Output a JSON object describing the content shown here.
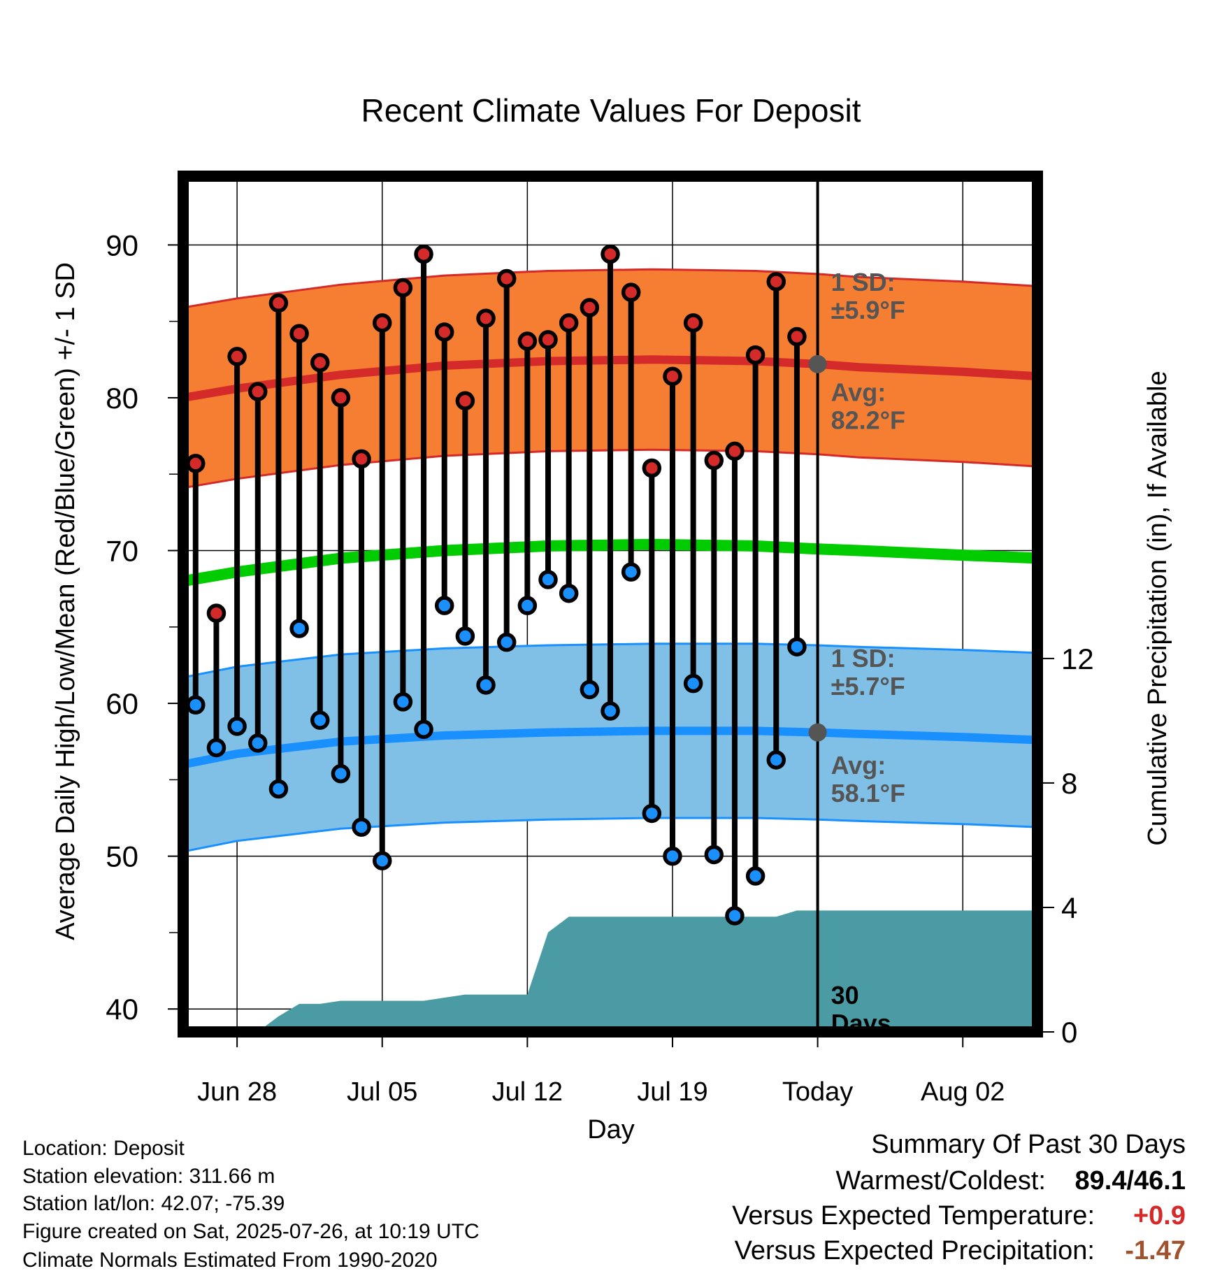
{
  "chart_data": {
    "type": "line",
    "title": "Recent Climate Values For Deposit",
    "xlabel": "Day",
    "ylabel_left": "Average Daily High/Low/Mean (Red/Blue/Green) +/- 1 SD",
    "ylabel_right": "Cumulative Precipitation (in), If Available",
    "x_ticks": [
      "Jun 28",
      "Jul 05",
      "Jul 12",
      "Jul 19",
      "Today",
      "Aug 02"
    ],
    "x_tick_days": [
      0,
      7,
      14,
      21,
      28,
      35
    ],
    "x_range_days": [
      -2.6,
      38.6
    ],
    "y_left_ticks": [
      40,
      50,
      60,
      70,
      80,
      90
    ],
    "y_left_range": [
      38.5,
      94.5
    ],
    "y_right_ticks": [
      0,
      4,
      8,
      12
    ],
    "y_right_range": [
      0,
      27.5
    ],
    "days": [
      -2,
      -1,
      0,
      1,
      2,
      3,
      4,
      5,
      6,
      7,
      8,
      9,
      10,
      11,
      12,
      13,
      14,
      15,
      16,
      17,
      18,
      19,
      20,
      21,
      22,
      23,
      24,
      25,
      26,
      27
    ],
    "highs": [
      75.7,
      65.9,
      82.7,
      80.4,
      86.2,
      84.2,
      82.3,
      80.0,
      76.0,
      84.9,
      87.2,
      89.4,
      84.3,
      79.8,
      85.2,
      87.8,
      83.7,
      83.8,
      84.9,
      85.9,
      89.4,
      86.9,
      75.4,
      81.4,
      84.9,
      75.9,
      76.5,
      82.8,
      87.6,
      84.0
    ],
    "lows": [
      59.9,
      57.1,
      58.5,
      57.4,
      54.4,
      64.9,
      58.9,
      55.4,
      51.9,
      49.7,
      60.1,
      58.3,
      66.4,
      64.4,
      61.2,
      64.0,
      66.4,
      68.1,
      67.2,
      60.9,
      59.5,
      68.6,
      52.8,
      50.0,
      61.3,
      50.1,
      46.1,
      48.7,
      56.3,
      63.7
    ],
    "normal_days": [
      -2.6,
      0,
      5,
      10,
      15,
      20,
      25,
      28,
      30,
      35,
      38.6
    ],
    "normal_high": [
      80.0,
      80.6,
      81.5,
      82.1,
      82.4,
      82.5,
      82.4,
      82.2,
      82.0,
      81.7,
      81.4
    ],
    "normal_low": [
      56.0,
      56.7,
      57.5,
      57.9,
      58.1,
      58.2,
      58.2,
      58.1,
      58.0,
      57.8,
      57.6
    ],
    "normal_mean": [
      68.0,
      68.6,
      69.5,
      70.0,
      70.3,
      70.4,
      70.3,
      70.1,
      70.0,
      69.7,
      69.5
    ],
    "high_sd": 5.9,
    "low_sd": 5.7,
    "precip_days": [
      -2.6,
      1,
      2,
      3,
      4,
      5,
      6,
      7,
      8,
      9,
      10,
      11,
      12,
      13,
      14,
      15,
      16,
      17,
      18,
      19,
      20,
      21,
      22,
      23,
      24,
      25,
      26,
      27,
      38.6
    ],
    "precip_cum": [
      0,
      0,
      0.5,
      0.9,
      0.9,
      1.0,
      1.0,
      1.0,
      1.0,
      1.0,
      1.1,
      1.2,
      1.2,
      1.2,
      1.2,
      3.2,
      3.7,
      3.7,
      3.7,
      3.7,
      3.7,
      3.7,
      3.7,
      3.7,
      3.7,
      3.7,
      3.7,
      3.9,
      3.9
    ],
    "annotations": {
      "high_sd": [
        "1 SD:",
        "±5.9°F"
      ],
      "high_avg": [
        "Avg:",
        "82.2°F"
      ],
      "low_sd": [
        "1 SD:",
        "±5.7°F"
      ],
      "low_avg": [
        "Avg:",
        "58.1°F"
      ],
      "days": [
        "30",
        "Days"
      ]
    },
    "colors": {
      "high_band": "#f57e33",
      "high_line": "#d42a2a",
      "low_band": "#80c0e6",
      "low_line": "#1a90ff",
      "mean_line": "#00cc00",
      "precip": "#4a9ba3",
      "high_dot": "#d42a2a",
      "low_dot": "#1a90ff",
      "annotation": "#555555",
      "today_dot": "#555555"
    }
  },
  "info": {
    "location": "Location: Deposit",
    "elevation": "Station elevation: 311.66 m",
    "latlon": "Station lat/lon: 42.07; -75.39",
    "created": "Figure created on Sat, 2025-07-26, at 10:19 UTC",
    "normals": "Climate Normals Estimated From 1990-2020"
  },
  "summary": {
    "title": "Summary Of Past 30 Days",
    "warm_cold_label": "Warmest/Coldest:",
    "warm_cold_value": "89.4/46.1",
    "temp_label": "Versus Expected Temperature:",
    "temp_value": "+0.9",
    "temp_color": "#d42a2a",
    "precip_label": "Versus Expected Precipitation:",
    "precip_value": "-1.47",
    "precip_color": "#a0522d"
  }
}
